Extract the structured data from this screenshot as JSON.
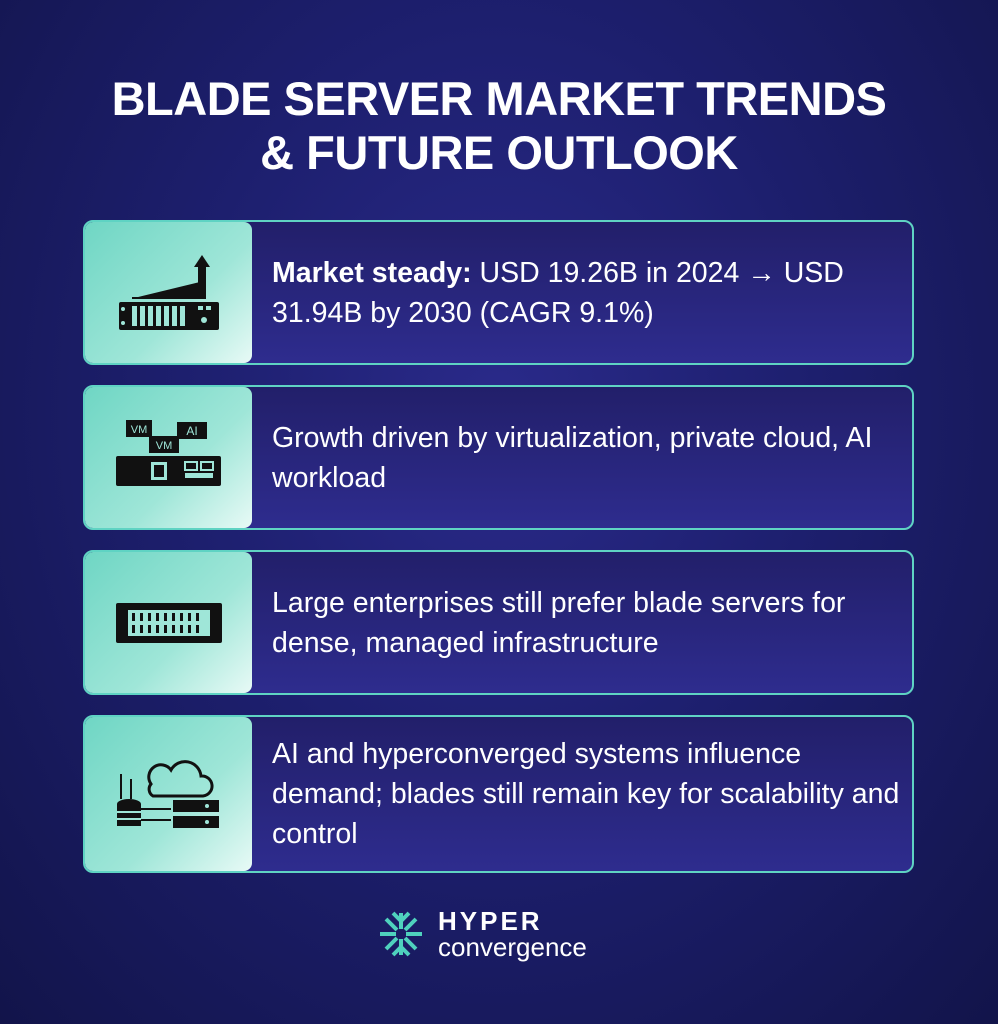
{
  "title": {
    "line1": "BLADE SERVER MARKET TRENDS",
    "line2": "& FUTURE OUTLOOK"
  },
  "cards": [
    {
      "icon": "server-growth-chart-icon",
      "bold": "Market steady:",
      "text": " USD 19.26B in 2024 → USD 31.94B by 2030 (CAGR 9.1%)"
    },
    {
      "icon": "virtualization-vm-ai-icon",
      "bold": "",
      "text": "Growth driven by virtualization, private cloud, AI workload"
    },
    {
      "icon": "blade-server-icon",
      "bold": "",
      "text": "Large enterprises still prefer blade servers for dense, managed infrastructure"
    },
    {
      "icon": "cloud-database-server-icon",
      "bold": "",
      "text": "AI and hyperconverged systems influence demand; blades still remain key for scalability and control"
    }
  ],
  "icon_labels": {
    "vm": "VM",
    "ai": "AI"
  },
  "logo": {
    "line1": "HYPER",
    "line2": "convergence",
    "accent": "#4fd1bd"
  },
  "colors": {
    "accent": "#5fd3c3",
    "background": "#1d1f6e"
  }
}
